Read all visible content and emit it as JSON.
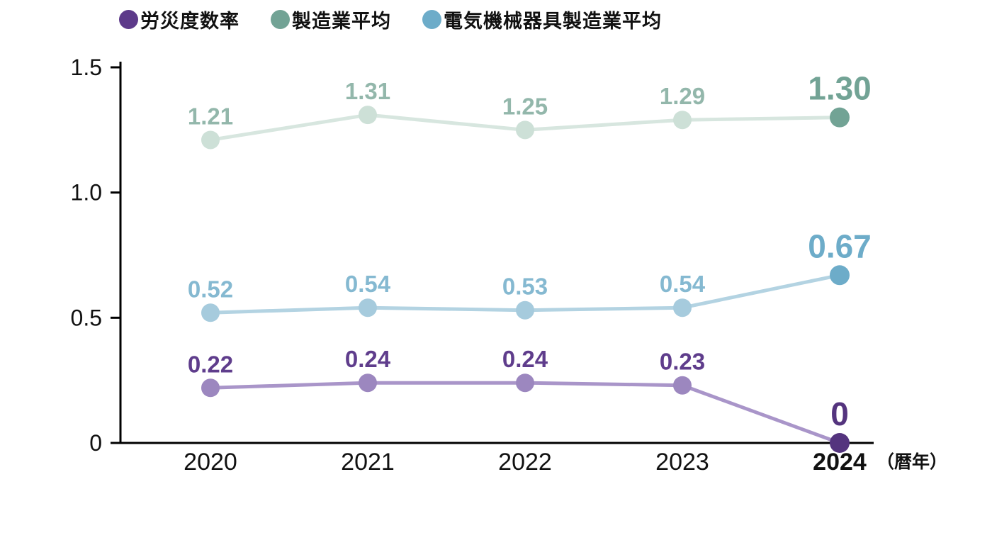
{
  "legend": {
    "items": [
      {
        "label": "労災度数率",
        "color": "#5d3a8a"
      },
      {
        "label": "製造業平均",
        "color": "#72a395"
      },
      {
        "label": "電気機械器具製造業平均",
        "color": "#6dacc9"
      }
    ]
  },
  "axis": {
    "x_suffix": "（暦年）",
    "y_ticks": [
      {
        "value": 0,
        "label": "0"
      },
      {
        "value": 0.5,
        "label": "0.5"
      },
      {
        "value": 1.0,
        "label": "1.0"
      },
      {
        "value": 1.5,
        "label": "1.5"
      }
    ]
  },
  "chart_data": {
    "type": "line",
    "title": "",
    "xlabel": "暦年",
    "ylabel": "",
    "ylim": [
      0,
      1.5
    ],
    "grid": false,
    "legend_position": "top",
    "categories": [
      "2020",
      "2021",
      "2022",
      "2023",
      "2024"
    ],
    "series": [
      {
        "name": "労災度数率",
        "values": [
          0.22,
          0.24,
          0.24,
          0.23,
          0
        ],
        "labels": [
          "0.22",
          "0.24",
          "0.24",
          "0.23",
          "0"
        ],
        "line_color": "#a995c9",
        "point_color": "#9c87bf",
        "label_color": "#5f3d8c",
        "final_point_color": "#54347e",
        "final_label_color": "#54347e"
      },
      {
        "name": "製造業平均",
        "values": [
          1.21,
          1.31,
          1.25,
          1.29,
          1.3
        ],
        "labels": [
          "1.21",
          "1.31",
          "1.25",
          "1.29",
          "1.30"
        ],
        "line_color": "#d7e6df",
        "point_color": "#cde0d7",
        "label_color": "#93b7ab",
        "final_point_color": "#72a395",
        "final_label_color": "#72a395"
      },
      {
        "name": "電気機械器具製造業平均",
        "values": [
          0.52,
          0.54,
          0.53,
          0.54,
          0.67
        ],
        "labels": [
          "0.52",
          "0.54",
          "0.53",
          "0.54",
          "0.67"
        ],
        "line_color": "#b3d3e2",
        "point_color": "#a6cbdd",
        "label_color": "#85b9d1",
        "final_point_color": "#6dacc9",
        "final_label_color": "#6dacc9"
      }
    ]
  }
}
